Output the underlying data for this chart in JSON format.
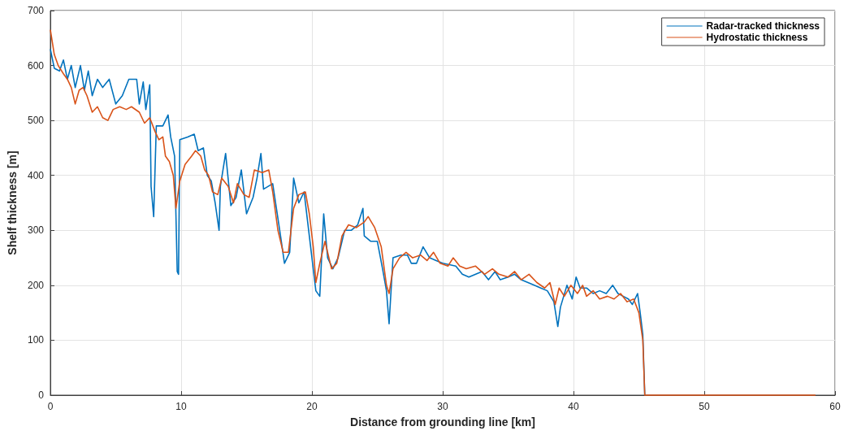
{
  "chart_data": {
    "type": "line",
    "xlabel": "Distance from grounding line [km]",
    "ylabel": "Shelf thickness [m]",
    "xlim": [
      0,
      60
    ],
    "xticks": [
      0,
      10,
      20,
      30,
      40,
      50,
      60
    ],
    "ylim": [
      0,
      700
    ],
    "yticks": [
      0,
      100,
      200,
      300,
      400,
      500,
      600,
      700
    ],
    "grid": true,
    "legend": "top right",
    "marker": "none",
    "line_style": "solid",
    "series": [
      {
        "name": "Radar-tracked thickness",
        "color": "#0072bd",
        "x": [
          0,
          0.3,
          0.7,
          1.0,
          1.3,
          1.6,
          1.9,
          2.3,
          2.6,
          2.9,
          3.2,
          3.6,
          4.0,
          4.5,
          5.0,
          5.5,
          6.0,
          6.6,
          6.8,
          7.1,
          7.3,
          7.6,
          7.7,
          7.9,
          8.1,
          8.6,
          9.0,
          9.2,
          9.5,
          9.7,
          9.8,
          9.9,
          10.5,
          11.0,
          11.3,
          11.7,
          12.0,
          12.3,
          12.6,
          12.9,
          13.0,
          13.4,
          13.8,
          14.2,
          14.6,
          15.0,
          15.5,
          15.8,
          16.1,
          16.3,
          17.0,
          17.6,
          17.9,
          18.3,
          18.6,
          19.0,
          19.4,
          19.8,
          20.3,
          20.6,
          20.9,
          21.2,
          21.6,
          22.0,
          22.5,
          23.0,
          23.5,
          23.9,
          24.0,
          24.5,
          25.0,
          25.4,
          25.7,
          25.9,
          26.2,
          26.8,
          27.3,
          27.6,
          28.0,
          28.5,
          29.0,
          29.5,
          30.0,
          31.0,
          31.5,
          32.0,
          33.0,
          33.5,
          34.0,
          34.4,
          35.0,
          35.5,
          36.0,
          37.0,
          37.5,
          38.0,
          38.5,
          38.8,
          39.0,
          39.5,
          39.9,
          40.2,
          40.5,
          41.0,
          41.5,
          42.0,
          42.5,
          43.0,
          43.4,
          43.8,
          44.2,
          44.5,
          44.9,
          45.1,
          45.3,
          45.45
        ],
        "values": [
          630,
          595,
          590,
          610,
          575,
          600,
          560,
          600,
          555,
          590,
          545,
          575,
          560,
          575,
          530,
          545,
          575,
          575,
          530,
          570,
          520,
          565,
          380,
          325,
          490,
          490,
          510,
          470,
          435,
          225,
          220,
          465,
          470,
          475,
          445,
          450,
          400,
          390,
          350,
          300,
          380,
          440,
          345,
          360,
          410,
          330,
          360,
          395,
          440,
          375,
          385,
          290,
          240,
          260,
          395,
          350,
          370,
          290,
          190,
          180,
          330,
          250,
          230,
          250,
          300,
          300,
          310,
          340,
          290,
          280,
          280,
          230,
          190,
          130,
          250,
          255,
          255,
          240,
          240,
          270,
          250,
          245,
          240,
          235,
          220,
          215,
          225,
          210,
          225,
          210,
          215,
          220,
          210,
          200,
          195,
          190,
          170,
          125,
          160,
          200,
          175,
          215,
          195,
          195,
          185,
          190,
          185,
          200,
          185,
          180,
          175,
          165,
          185,
          150,
          110,
          0
        ]
      },
      {
        "name": "Hydrostatic thickness",
        "color": "#d95319",
        "x": [
          0,
          0.3,
          0.6,
          1.0,
          1.3,
          1.6,
          1.9,
          2.2,
          2.5,
          2.8,
          3.2,
          3.6,
          4.0,
          4.4,
          4.8,
          5.3,
          5.8,
          6.2,
          6.8,
          7.2,
          7.6,
          8.0,
          8.3,
          8.6,
          8.8,
          9.1,
          9.4,
          9.6,
          9.9,
          10.3,
          10.8,
          11.1,
          11.5,
          11.8,
          12.1,
          12.4,
          12.8,
          13.1,
          13.6,
          14.0,
          14.3,
          14.8,
          15.2,
          15.6,
          16.2,
          16.7,
          17.0,
          17.4,
          17.8,
          18.2,
          18.6,
          19.0,
          19.5,
          19.8,
          20.1,
          20.3,
          20.6,
          21.0,
          21.5,
          21.9,
          22.3,
          22.8,
          23.4,
          24.0,
          24.3,
          24.8,
          25.3,
          25.7,
          25.9,
          26.2,
          26.7,
          27.2,
          27.7,
          28.3,
          28.8,
          29.3,
          29.8,
          30.4,
          30.8,
          31.3,
          31.8,
          32.5,
          33.2,
          33.8,
          34.3,
          35.0,
          35.5,
          36.0,
          36.6,
          37.2,
          37.8,
          38.2,
          38.6,
          38.9,
          39.3,
          39.8,
          40.3,
          40.7,
          41.0,
          41.5,
          42.0,
          42.6,
          43.1,
          43.6,
          44.1,
          44.6,
          45.0,
          45.3,
          45.45,
          58.5
        ],
        "values": [
          665,
          620,
          600,
          585,
          575,
          560,
          530,
          555,
          560,
          545,
          515,
          525,
          505,
          500,
          520,
          525,
          520,
          525,
          515,
          495,
          505,
          480,
          465,
          470,
          435,
          425,
          400,
          340,
          390,
          420,
          435,
          445,
          435,
          410,
          400,
          370,
          365,
          395,
          380,
          350,
          385,
          365,
          360,
          410,
          405,
          410,
          370,
          300,
          260,
          260,
          340,
          365,
          370,
          330,
          270,
          205,
          240,
          280,
          230,
          240,
          290,
          310,
          305,
          315,
          325,
          305,
          270,
          200,
          185,
          230,
          250,
          260,
          250,
          255,
          245,
          260,
          240,
          235,
          250,
          235,
          230,
          235,
          220,
          230,
          220,
          215,
          225,
          210,
          220,
          205,
          195,
          205,
          165,
          195,
          180,
          200,
          185,
          200,
          180,
          190,
          175,
          180,
          175,
          185,
          170,
          175,
          150,
          100,
          0,
          0
        ]
      }
    ]
  }
}
